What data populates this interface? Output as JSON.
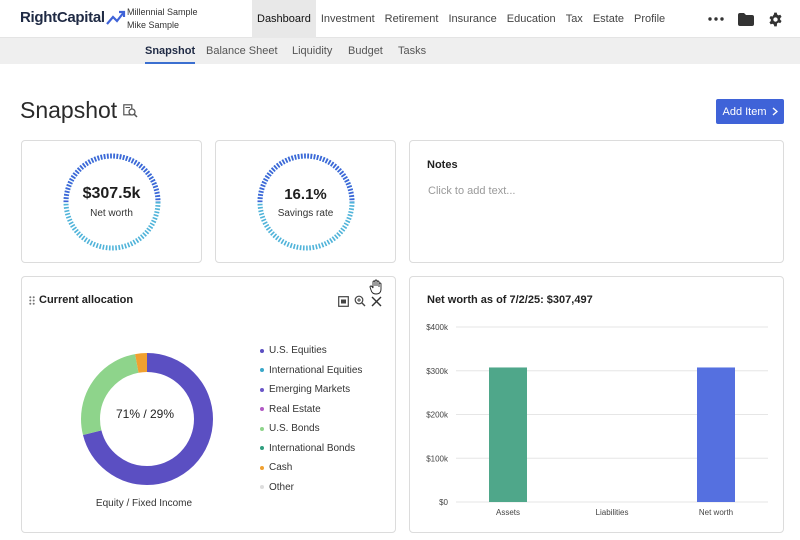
{
  "brand": {
    "name": "RightCapital"
  },
  "client": {
    "line1": "Millennial Sample",
    "line2": "Mike Sample"
  },
  "nav": {
    "items": [
      "Dashboard",
      "Investment",
      "Retirement",
      "Insurance",
      "Education",
      "Tax",
      "Estate",
      "Profile"
    ],
    "active": "Dashboard",
    "icons": [
      "more-icon",
      "folder-icon",
      "gear-icon"
    ]
  },
  "subnav": {
    "items": [
      "Snapshot",
      "Balance Sheet",
      "Liquidity",
      "Budget",
      "Tasks"
    ],
    "active": "Snapshot"
  },
  "page": {
    "title": "Snapshot",
    "add_button": "Add Item"
  },
  "net_worth_card": {
    "value": "$307.5k",
    "label": "Net worth"
  },
  "savings_card": {
    "value": "16.1%",
    "label": "Savings rate"
  },
  "notes": {
    "title": "Notes",
    "placeholder": "Click to add text..."
  },
  "allocation": {
    "title": "Current allocation",
    "center_text": "71% / 29%",
    "caption": "Equity / Fixed Income",
    "legend": [
      {
        "label": "U.S. Equities",
        "color": "#5b4fc2"
      },
      {
        "label": "International Equities",
        "color": "#3aa8c9"
      },
      {
        "label": "Emerging Markets",
        "color": "#6b57c8"
      },
      {
        "label": "Real Estate",
        "color": "#b259c4"
      },
      {
        "label": "U.S. Bonds",
        "color": "#8ed48b"
      },
      {
        "label": "International Bonds",
        "color": "#2f9e7e"
      },
      {
        "label": "Cash",
        "color": "#f0a030"
      },
      {
        "label": "Other",
        "color": "#dddddd"
      }
    ]
  },
  "chart_data": {
    "type": "bar",
    "title": "Net worth as of 7/2/25: $307,497",
    "categories": [
      "Assets",
      "Liabilities",
      "Net worth"
    ],
    "values": [
      307497,
      0,
      307497
    ],
    "colors": [
      "#4fa78a",
      "#4fa78a",
      "#5570e0"
    ],
    "yticks": [
      "$0",
      "$100k",
      "$200k",
      "$300k",
      "$400k"
    ],
    "ylim": [
      0,
      400000
    ],
    "grid": true
  }
}
